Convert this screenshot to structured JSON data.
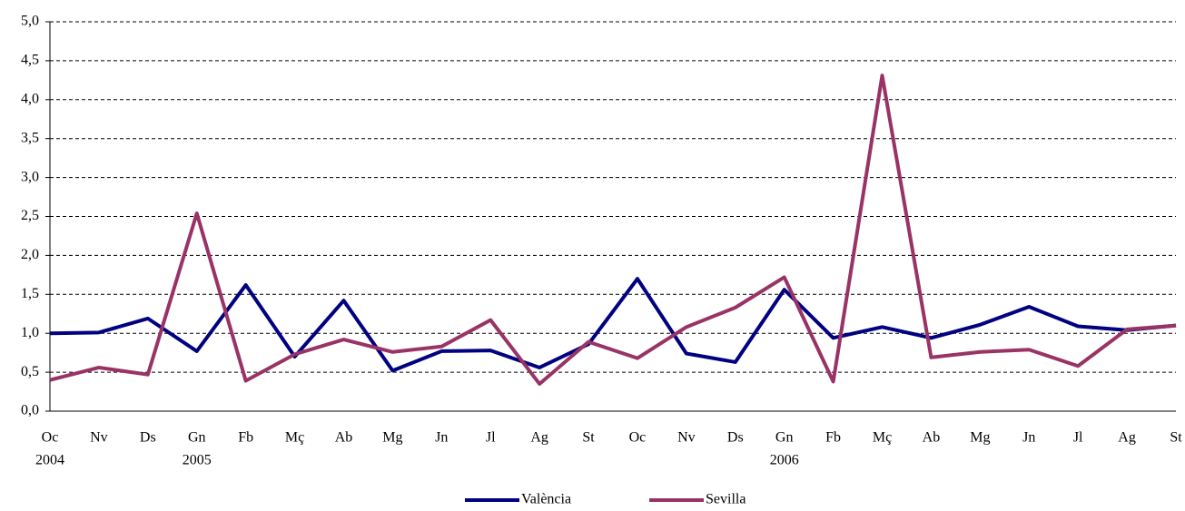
{
  "chart_data": {
    "type": "line",
    "categories": [
      "Oc",
      "Nv",
      "Ds",
      "Gn",
      "Fb",
      "Mç",
      "Ab",
      "Mg",
      "Jn",
      "Jl",
      "Ag",
      "St",
      "Oc",
      "Nv",
      "Ds",
      "Gn",
      "Fb",
      "Mç",
      "Ab",
      "Mg",
      "Jn",
      "Jl",
      "Ag",
      "St"
    ],
    "years": [
      "2004",
      null,
      null,
      "2005",
      null,
      null,
      null,
      null,
      null,
      null,
      null,
      null,
      null,
      null,
      null,
      "2006",
      null,
      null,
      null,
      null,
      null,
      null,
      null,
      null
    ],
    "series": [
      {
        "name": "València",
        "color": "#000080",
        "values": [
          1.0,
          1.01,
          1.19,
          0.77,
          1.62,
          0.7,
          1.42,
          0.52,
          0.77,
          0.78,
          0.56,
          0.86,
          1.7,
          0.74,
          0.63,
          1.56,
          0.94,
          1.08,
          0.94,
          1.11,
          1.34,
          1.09,
          1.04,
          1.1
        ]
      },
      {
        "name": "Sevilla",
        "color": "#993366",
        "values": [
          0.4,
          0.56,
          0.47,
          2.54,
          0.39,
          0.73,
          0.92,
          0.76,
          0.83,
          1.17,
          0.35,
          0.89,
          0.68,
          1.08,
          1.33,
          1.72,
          0.38,
          4.31,
          0.69,
          0.76,
          0.79,
          0.58,
          1.05,
          1.1
        ]
      }
    ],
    "ylim": [
      0,
      5
    ],
    "yticks": [
      {
        "value": 0,
        "label": "0,0"
      },
      {
        "value": 0.5,
        "label": "0,5"
      },
      {
        "value": 1,
        "label": "1,0"
      },
      {
        "value": 1.5,
        "label": "1,5"
      },
      {
        "value": 2,
        "label": "2,0"
      },
      {
        "value": 2.5,
        "label": "2,5"
      },
      {
        "value": 3,
        "label": "3,0"
      },
      {
        "value": 3.5,
        "label": "3,5"
      },
      {
        "value": 4,
        "label": "4,0"
      },
      {
        "value": 4.5,
        "label": "4,5"
      },
      {
        "value": 5,
        "label": "5,0"
      }
    ],
    "grid": true,
    "legend": "bottom"
  }
}
